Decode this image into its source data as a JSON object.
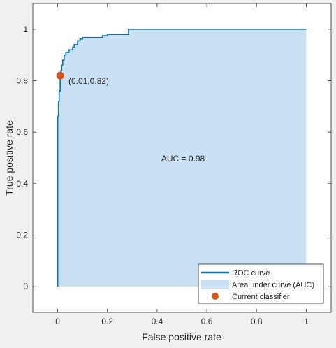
{
  "chart_data": {
    "type": "line",
    "title": "",
    "xlabel": "False positive rate",
    "ylabel": "True positive rate",
    "xlim": [
      -0.1,
      1.1
    ],
    "ylim": [
      -0.1,
      1.1
    ],
    "xticks": [
      0,
      0.2,
      0.4,
      0.6,
      0.8,
      1
    ],
    "yticks": [
      0,
      0.2,
      0.4,
      0.6,
      0.8,
      1
    ],
    "xtick_labels": [
      "0",
      "0.2",
      "0.4",
      "0.6",
      "0.8",
      "1"
    ],
    "ytick_labels": [
      "0",
      "0.2",
      "0.4",
      "0.6",
      "0.8",
      "1"
    ],
    "grid": false,
    "legend_position": "bottom-right",
    "colors": {
      "roc_line": "#0072bd",
      "auc_fill": "#c9e1f2",
      "classifier_marker": "#d95319",
      "axes_bg": "#ffffff",
      "figure_bg": "#f0f0f0"
    },
    "series": [
      {
        "name": "ROC curve",
        "x": [
          0,
          0,
          0.003,
          0.003,
          0.006,
          0.006,
          0.01,
          0.01,
          0.013,
          0.013,
          0.016,
          0.016,
          0.02,
          0.02,
          0.026,
          0.026,
          0.033,
          0.033,
          0.046,
          0.046,
          0.06,
          0.06,
          0.066,
          0.066,
          0.08,
          0.08,
          0.09,
          0.09,
          0.1,
          0.1,
          0.18,
          0.18,
          0.2,
          0.2,
          0.285,
          0.285,
          1
        ],
        "y": [
          0,
          0.66,
          0.66,
          0.72,
          0.72,
          0.76,
          0.76,
          0.82,
          0.82,
          0.84,
          0.84,
          0.86,
          0.86,
          0.88,
          0.88,
          0.9,
          0.9,
          0.91,
          0.91,
          0.92,
          0.92,
          0.93,
          0.93,
          0.94,
          0.94,
          0.955,
          0.955,
          0.962,
          0.962,
          0.968,
          0.968,
          0.975,
          0.975,
          0.98,
          0.98,
          1.0,
          1.0
        ]
      }
    ],
    "area_label": "Area under curve (AUC)",
    "auc_annotation": {
      "text": "AUC = 0.98",
      "x": 0.5,
      "y": 0.5
    },
    "current_classifier": {
      "label": "Current classifier",
      "x": 0.01,
      "y": 0.82,
      "text": "(0.01,0.82)"
    },
    "legend": [
      "ROC curve",
      "Area under curve (AUC)",
      "Current classifier"
    ]
  }
}
